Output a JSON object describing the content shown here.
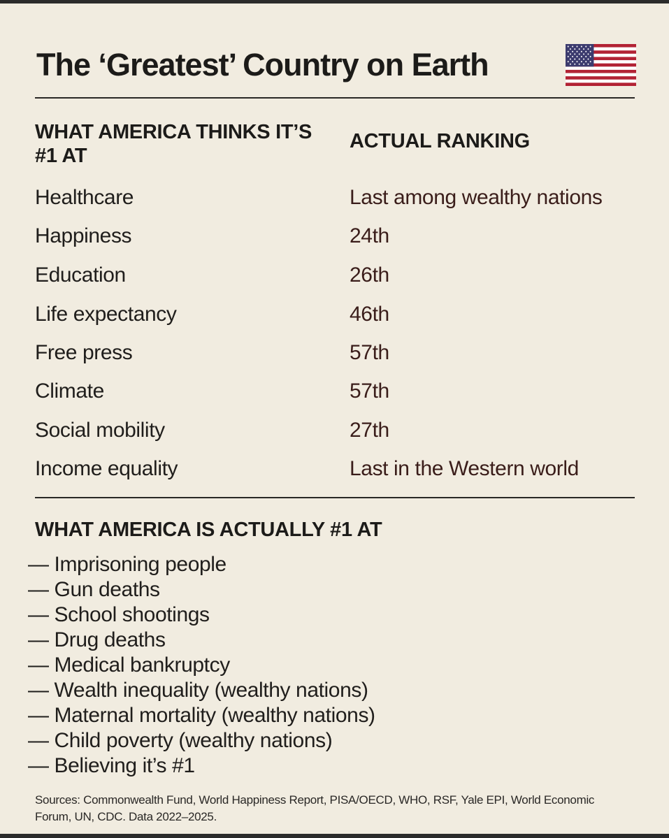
{
  "title": "The ‘Greatest’ Country on Earth",
  "flag_icon": "us-flag-icon",
  "colors": {
    "background": "#f1ece0",
    "text": "#1f1d1b",
    "ranking_text": "#3a1d1a",
    "flag_red": "#b22234",
    "flag_blue": "#3c3b6e"
  },
  "table": {
    "left_header": "WHAT AMERICA THINKS IT’S #1 AT",
    "right_header": "ACTUAL RANKING",
    "rows": [
      {
        "category": "Healthcare",
        "ranking": "Last among wealthy nations"
      },
      {
        "category": "Happiness",
        "ranking": "24th"
      },
      {
        "category": "Education",
        "ranking": "26th"
      },
      {
        "category": "Life expectancy",
        "ranking": "46th"
      },
      {
        "category": "Free press",
        "ranking": "57th"
      },
      {
        "category": "Climate",
        "ranking": "57th"
      },
      {
        "category": "Social mobility",
        "ranking": "27th"
      },
      {
        "category": "Income equality",
        "ranking": "Last in the Western world"
      }
    ]
  },
  "actual": {
    "heading": "WHAT AMERICA IS ACTUALLY #1 AT",
    "items": [
      "— Imprisoning people",
      "— Gun deaths",
      "— School shootings",
      "— Drug deaths",
      "— Medical bankruptcy",
      "— Wealth inequality (wealthy nations)",
      "— Maternal mortality (wealthy nations)",
      "— Child poverty (wealthy nations)",
      "— Believing it’s #1"
    ]
  },
  "sources": "Sources: Commonwealth Fund, World Happiness Report, PISA/OECD, WHO, RSF, Yale EPI, World Economic Forum, UN, CDC. Data 2022–2025."
}
